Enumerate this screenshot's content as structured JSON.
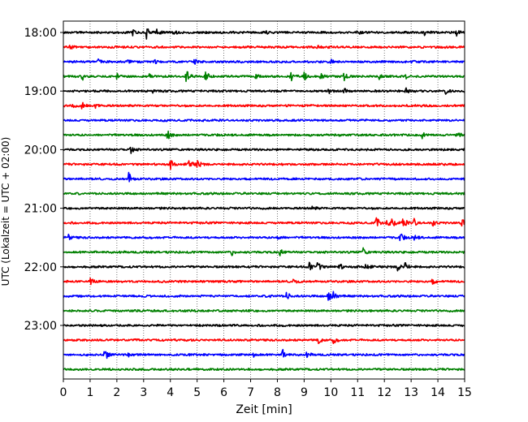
{
  "chart_data": {
    "type": "line",
    "title": "",
    "xlabel": "Zeit  [min]",
    "ylabel": "UTC (Lokalzeit = UTC + 02:00)",
    "xlim": [
      0,
      15
    ],
    "x_ticks": [
      0,
      1,
      2,
      3,
      4,
      5,
      6,
      7,
      8,
      9,
      10,
      11,
      12,
      13,
      14,
      15
    ],
    "x_grid": "dotted vertical lines at each minute",
    "y_tick_labels": [
      "18:00",
      "19:00",
      "20:00",
      "21:00",
      "22:00",
      "23:00"
    ],
    "trace_interval_minutes": 15,
    "trace_colors": [
      "#000000",
      "#ff0000",
      "#0000ff",
      "#008000"
    ],
    "traces": [
      {
        "start": "18:00",
        "color": "#000000",
        "events": [
          {
            "t": 2.6,
            "amp": 0.35
          },
          {
            "t": 3.1,
            "amp": 0.8
          },
          {
            "t": 3.5,
            "amp": 0.45
          },
          {
            "t": 4.1,
            "amp": 0.4
          },
          {
            "t": 7.6,
            "amp": 0.25
          },
          {
            "t": 11.0,
            "amp": 0.45
          },
          {
            "t": 13.5,
            "amp": 0.3
          },
          {
            "t": 14.7,
            "amp": 0.35
          }
        ]
      },
      {
        "start": "18:15",
        "color": "#ff0000",
        "events": [
          {
            "t": 0.25,
            "amp": 0.45
          },
          {
            "t": 9.5,
            "amp": 0.2
          }
        ]
      },
      {
        "start": "18:30",
        "color": "#0000ff",
        "events": [
          {
            "t": 1.3,
            "amp": 0.3
          },
          {
            "t": 2.4,
            "amp": 0.3
          },
          {
            "t": 3.4,
            "amp": 0.25
          },
          {
            "t": 4.9,
            "amp": 0.3
          },
          {
            "t": 10.0,
            "amp": 0.25
          },
          {
            "t": 13.0,
            "amp": 0.25
          }
        ]
      },
      {
        "start": "18:45",
        "color": "#008000",
        "events": [
          {
            "t": 0.7,
            "amp": 0.5
          },
          {
            "t": 2.0,
            "amp": 0.45
          },
          {
            "t": 3.2,
            "amp": 0.35
          },
          {
            "t": 4.6,
            "amp": 0.8
          },
          {
            "t": 5.3,
            "amp": 0.8
          },
          {
            "t": 7.2,
            "amp": 0.3
          },
          {
            "t": 8.5,
            "amp": 0.75
          },
          {
            "t": 9.0,
            "amp": 0.5
          },
          {
            "t": 9.6,
            "amp": 0.6
          },
          {
            "t": 10.5,
            "amp": 0.45
          },
          {
            "t": 11.8,
            "amp": 0.3
          },
          {
            "t": 12.8,
            "amp": 0.3
          }
        ]
      },
      {
        "start": "19:00",
        "color": "#000000",
        "events": [
          {
            "t": 3.3,
            "amp": 0.25
          },
          {
            "t": 9.9,
            "amp": 0.35
          },
          {
            "t": 10.5,
            "amp": 0.3
          },
          {
            "t": 12.8,
            "amp": 0.35
          },
          {
            "t": 14.3,
            "amp": 0.3
          }
        ]
      },
      {
        "start": "19:15",
        "color": "#ff0000",
        "events": [
          {
            "t": 0.3,
            "amp": 0.35
          },
          {
            "t": 0.7,
            "amp": 0.4
          },
          {
            "t": 1.2,
            "amp": 0.35
          }
        ]
      },
      {
        "start": "19:30",
        "color": "#0000ff",
        "events": []
      },
      {
        "start": "19:45",
        "color": "#008000",
        "events": [
          {
            "t": 3.9,
            "amp": 0.55
          },
          {
            "t": 13.4,
            "amp": 0.55
          },
          {
            "t": 14.7,
            "amp": 0.55
          }
        ]
      },
      {
        "start": "20:00",
        "color": "#000000",
        "events": [
          {
            "t": 2.5,
            "amp": 0.5
          }
        ]
      },
      {
        "start": "20:15",
        "color": "#ff0000",
        "events": [
          {
            "t": 4.0,
            "amp": 0.55
          },
          {
            "t": 4.7,
            "amp": 0.6
          },
          {
            "t": 5.0,
            "amp": 0.5
          }
        ]
      },
      {
        "start": "20:30",
        "color": "#0000ff",
        "events": [
          {
            "t": 2.45,
            "amp": 0.75
          }
        ]
      },
      {
        "start": "20:45",
        "color": "#008000",
        "events": []
      },
      {
        "start": "21:00",
        "color": "#000000",
        "events": [
          {
            "t": 9.3,
            "amp": 0.25
          }
        ]
      },
      {
        "start": "21:15",
        "color": "#ff0000",
        "events": [
          {
            "t": 11.7,
            "amp": 0.7
          },
          {
            "t": 12.1,
            "amp": 0.45
          },
          {
            "t": 12.3,
            "amp": 0.6
          },
          {
            "t": 12.7,
            "amp": 0.7
          },
          {
            "t": 13.1,
            "amp": 0.6
          },
          {
            "t": 13.8,
            "amp": 0.35
          },
          {
            "t": 14.9,
            "amp": 0.5
          }
        ]
      },
      {
        "start": "21:30",
        "color": "#0000ff",
        "events": [
          {
            "t": 0.2,
            "amp": 0.35
          },
          {
            "t": 8.0,
            "amp": 0.55
          },
          {
            "t": 12.6,
            "amp": 0.55
          },
          {
            "t": 13.1,
            "amp": 0.4
          }
        ]
      },
      {
        "start": "21:45",
        "color": "#008000",
        "events": [
          {
            "t": 6.3,
            "amp": 0.35
          },
          {
            "t": 8.1,
            "amp": 0.4
          },
          {
            "t": 11.2,
            "amp": 0.5
          }
        ]
      },
      {
        "start": "22:00",
        "color": "#000000",
        "events": [
          {
            "t": 9.2,
            "amp": 0.6
          },
          {
            "t": 9.5,
            "amp": 0.65
          },
          {
            "t": 10.3,
            "amp": 0.45
          },
          {
            "t": 11.3,
            "amp": 0.5
          },
          {
            "t": 12.5,
            "amp": 0.5
          },
          {
            "t": 12.75,
            "amp": 0.65
          }
        ]
      },
      {
        "start": "22:15",
        "color": "#ff0000",
        "events": [
          {
            "t": 1.0,
            "amp": 0.5
          },
          {
            "t": 8.6,
            "amp": 0.4
          },
          {
            "t": 13.8,
            "amp": 0.3
          }
        ]
      },
      {
        "start": "22:30",
        "color": "#0000ff",
        "events": [
          {
            "t": 7.7,
            "amp": 0.3
          },
          {
            "t": 8.35,
            "amp": 0.5
          },
          {
            "t": 9.9,
            "amp": 0.7
          },
          {
            "t": 10.1,
            "amp": 0.6
          }
        ]
      },
      {
        "start": "22:45",
        "color": "#008000",
        "events": []
      },
      {
        "start": "23:00",
        "color": "#000000",
        "events": []
      },
      {
        "start": "23:15",
        "color": "#ff0000",
        "events": [
          {
            "t": 9.5,
            "amp": 0.6
          },
          {
            "t": 10.1,
            "amp": 0.4
          }
        ]
      },
      {
        "start": "23:30",
        "color": "#0000ff",
        "events": [
          {
            "t": 1.55,
            "amp": 0.75
          },
          {
            "t": 2.4,
            "amp": 0.35
          },
          {
            "t": 7.1,
            "amp": 0.3
          },
          {
            "t": 8.2,
            "amp": 0.55
          },
          {
            "t": 9.1,
            "amp": 0.25
          }
        ]
      },
      {
        "start": "23:45",
        "color": "#008000",
        "events": []
      }
    ]
  }
}
